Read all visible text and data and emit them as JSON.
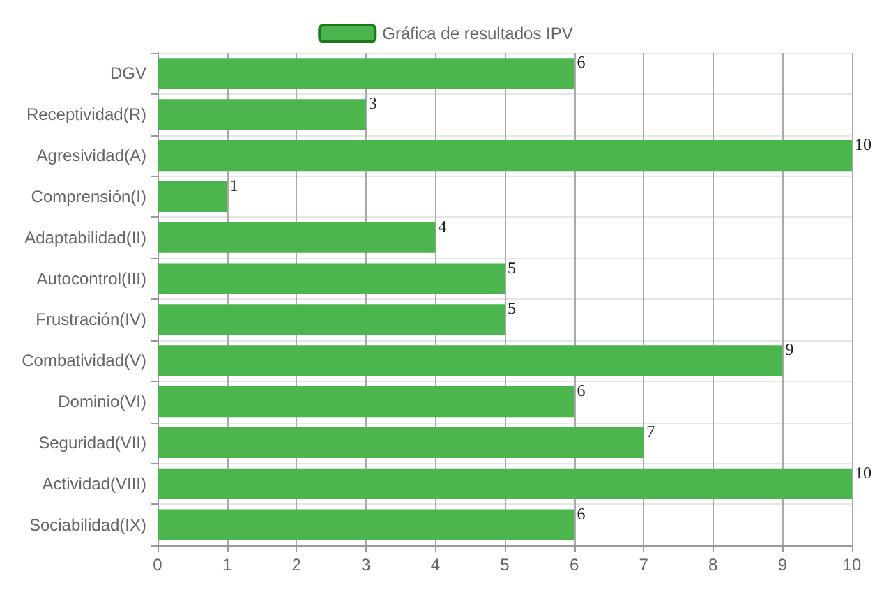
{
  "chart_data": {
    "type": "bar",
    "orientation": "horizontal",
    "categories": [
      "DGV",
      "Receptividad(R)",
      "Agresividad(A)",
      "Comprensión(I)",
      "Adaptabilidad(II)",
      "Autocontrol(III)",
      "Frustración(IV)",
      "Combatividad(V)",
      "Dominio(VI)",
      "Seguridad(VII)",
      "Actividad(VIII)",
      "Sociabilidad(IX)"
    ],
    "series": [
      {
        "name": "Gráfica de resultados IPV",
        "color": "#4db54d",
        "values": [
          6,
          3,
          10,
          1,
          4,
          5,
          5,
          9,
          6,
          7,
          10,
          6
        ]
      }
    ],
    "xlim": [
      0,
      10
    ],
    "xticks": [
      0,
      1,
      2,
      3,
      4,
      5,
      6,
      7,
      8,
      9,
      10
    ],
    "grid": true,
    "legend": "top",
    "data_labels": true
  }
}
